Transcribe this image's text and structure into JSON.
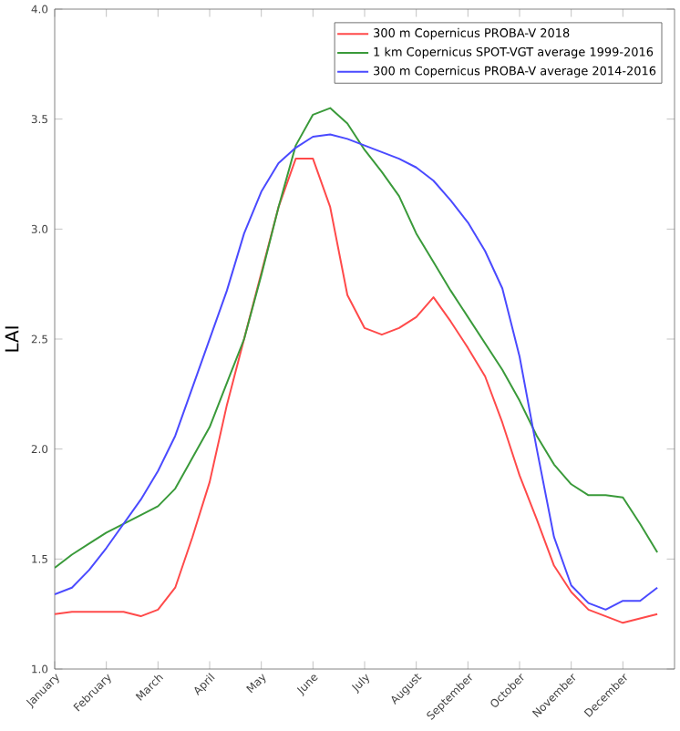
{
  "chart_data": {
    "type": "line",
    "ylabel": "LAI",
    "categories": [
      "January",
      null,
      null,
      "February",
      null,
      null,
      "March",
      null,
      null,
      "April",
      null,
      null,
      "May",
      null,
      null,
      "June",
      null,
      null,
      "July",
      null,
      null,
      "August",
      null,
      null,
      "September",
      null,
      null,
      "October",
      null,
      null,
      "November",
      null,
      null,
      "December",
      null,
      null
    ],
    "ylim": [
      1.0,
      4.0
    ],
    "yticks": [
      {
        "value": 1.0,
        "label": "1.0"
      },
      {
        "value": 1.5,
        "label": "1.5"
      },
      {
        "value": 2.0,
        "label": "2.0"
      },
      {
        "value": 2.5,
        "label": "2.5"
      },
      {
        "value": 3.0,
        "label": "3.0"
      },
      {
        "value": 3.5,
        "label": "3.5"
      },
      {
        "value": 4.0,
        "label": "4.0"
      }
    ],
    "legend": "top right",
    "grid": false,
    "marker": "none",
    "line_style": "solid",
    "series": [
      {
        "name": "300 m Copernicus PROBA-V 2018",
        "color": "#ff4a4a",
        "values": [
          1.25,
          1.26,
          1.26,
          1.26,
          1.26,
          1.24,
          1.27,
          1.37,
          1.6,
          1.85,
          2.2,
          2.5,
          2.8,
          3.1,
          3.32,
          3.32,
          3.1,
          2.7,
          2.55,
          2.52,
          2.55,
          2.6,
          2.69,
          2.58,
          2.46,
          2.33,
          2.12,
          1.88,
          1.68,
          1.47,
          1.35,
          1.27,
          1.24,
          1.21,
          1.23,
          1.25
        ]
      },
      {
        "name": "1 km Copernicus SPOT-VGT average 1999-2016",
        "color": "#3a9a3a",
        "values": [
          1.46,
          1.52,
          1.57,
          1.62,
          1.66,
          1.7,
          1.74,
          1.82,
          1.96,
          2.1,
          2.3,
          2.5,
          2.79,
          3.1,
          3.38,
          3.52,
          3.55,
          3.48,
          3.36,
          3.26,
          3.15,
          2.98,
          2.85,
          2.72,
          2.6,
          2.48,
          2.36,
          2.22,
          2.06,
          1.93,
          1.84,
          1.79,
          1.79,
          1.78,
          1.66,
          1.53
        ]
      },
      {
        "name": "300 m Copernicus PROBA-V average 2014-2016",
        "color": "#4a4aff",
        "values": [
          1.34,
          1.37,
          1.45,
          1.55,
          1.66,
          1.77,
          1.9,
          2.06,
          2.28,
          2.5,
          2.72,
          2.98,
          3.17,
          3.3,
          3.37,
          3.42,
          3.43,
          3.41,
          3.38,
          3.35,
          3.32,
          3.28,
          3.22,
          3.13,
          3.03,
          2.9,
          2.73,
          2.42,
          2.0,
          1.6,
          1.38,
          1.3,
          1.27,
          1.31,
          1.31,
          1.37
        ]
      }
    ]
  }
}
